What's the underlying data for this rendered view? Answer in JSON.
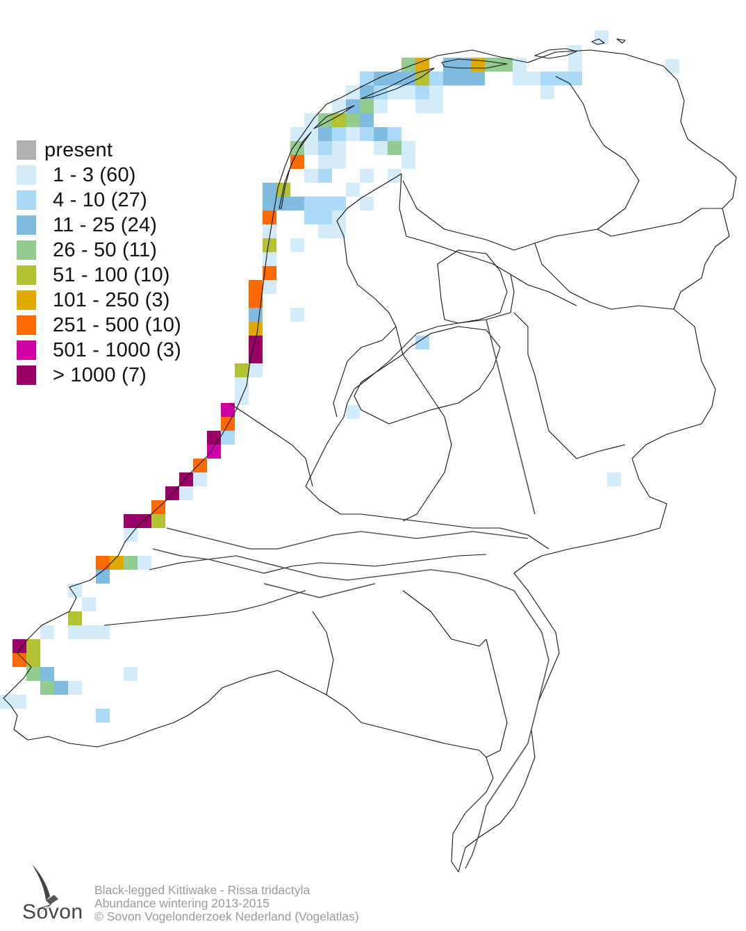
{
  "colors": {
    "present": "#b0b0b0",
    "c1": "#d4ebfa",
    "c2": "#aadaf6",
    "c3": "#7fbcdf",
    "c4": "#94cb8f",
    "c5": "#b2c233",
    "c6": "#e1aa00",
    "c7": "#ff6a00",
    "c8": "#cf00a5",
    "c9": "#990066",
    "outline": "#111111",
    "river": "#555555"
  },
  "legend": {
    "items": [
      {
        "label": "present",
        "color_key": "present"
      },
      {
        "label": "1 - 3 (60)",
        "color_key": "c1"
      },
      {
        "label": "4 - 10 (27)",
        "color_key": "c2"
      },
      {
        "label": "11 - 25 (24)",
        "color_key": "c3"
      },
      {
        "label": "26 - 50 (11)",
        "color_key": "c4"
      },
      {
        "label": "51 - 100 (10)",
        "color_key": "c5"
      },
      {
        "label": "101 - 250 (3)",
        "color_key": "c6"
      },
      {
        "label": "251 - 500 (10)",
        "color_key": "c7"
      },
      {
        "label": "501 - 1000 (3)",
        "color_key": "c8"
      },
      {
        "label": "> 1000 (7)",
        "color_key": "c9"
      }
    ]
  },
  "credits": {
    "line1": "Black-legged Kittiwake - Rissa tridactyla",
    "line2": "Abundance wintering 2013-2015",
    "line3": "© Sovon Vogelonderzoek Nederland (Vogelatlas)"
  },
  "logo": {
    "icon": "swallow-icon",
    "text": "Sovon"
  }
}
